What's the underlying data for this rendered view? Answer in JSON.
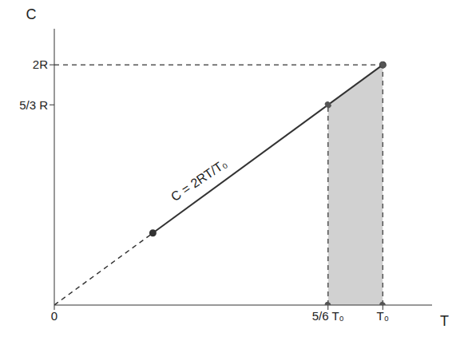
{
  "chart_data": {
    "type": "line",
    "x_label": "T",
    "y_label": "C",
    "annotation": "C = 2RT/T₀",
    "xlim": [
      0,
      1.15
    ],
    "ylim": [
      0,
      2.3
    ],
    "xticks": [
      0,
      {
        "value": 0.8333,
        "label": "5/6 T₀"
      },
      {
        "value": 1,
        "label": "T₀"
      }
    ],
    "yticks": [
      {
        "value": 1.6667,
        "label": "5/3 R"
      },
      {
        "value": 2,
        "label": "2R"
      }
    ],
    "grid": false,
    "series": [
      {
        "x": [
          0,
          0.3
        ],
        "values": [
          0,
          0.6
        ],
        "color": "#333333",
        "line_style": "dashed"
      },
      {
        "x": [
          0.3,
          1
        ],
        "values": [
          0.6,
          2
        ],
        "color": "#333333",
        "line_style": "solid",
        "marker": "circle"
      },
      {
        "type": "area",
        "x": [
          0.8333,
          1
        ],
        "values": [
          1.6667,
          2
        ],
        "color": "#9a9a9a"
      },
      {
        "x": [
          0.8333,
          0.8333
        ],
        "values": [
          0,
          1.6667
        ],
        "color": "#555555",
        "line_style": "dashed",
        "marker": "circle"
      },
      {
        "x": [
          1,
          1
        ],
        "values": [
          0,
          2
        ],
        "color": "#555555",
        "line_style": "dashed",
        "marker": "circle"
      },
      {
        "x": [
          0,
          1
        ],
        "values": [
          2,
          2
        ],
        "color": "#555555",
        "line_style": "dashed"
      }
    ]
  }
}
